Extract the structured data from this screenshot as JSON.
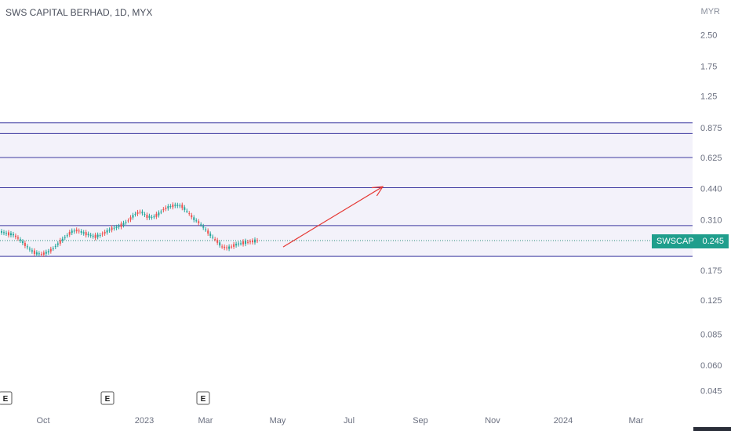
{
  "header": {
    "title": "SWS CAPITAL BERHAD, 1D, MYX",
    "currency": "MYR"
  },
  "price_tag": {
    "symbol": "SWSCAP",
    "value": "0.245"
  },
  "earnings_marker": "E",
  "chart_data": {
    "type": "candlestick",
    "y_scale": "log",
    "y_ticks": [
      "2.50",
      "1.75",
      "1.25",
      "0.875",
      "0.625",
      "0.440",
      "0.310",
      "0.175",
      "0.125",
      "0.085",
      "0.060",
      "0.045"
    ],
    "x_ticks": [
      "Oct",
      "2023",
      "Mar",
      "May",
      "Jul",
      "Sep",
      "Nov",
      "2024",
      "Mar"
    ],
    "horizontal_levels": [
      0.925,
      0.82,
      0.625,
      0.445,
      0.29,
      0.205
    ],
    "last_price": 0.245,
    "projection_arrow": {
      "from": {
        "date": "Apr 2023",
        "price": 0.228
      },
      "to": {
        "date": "Aug 2023",
        "price": 0.45
      }
    },
    "price_path": [
      0.27,
      0.265,
      0.262,
      0.25,
      0.235,
      0.22,
      0.212,
      0.21,
      0.215,
      0.225,
      0.24,
      0.255,
      0.27,
      0.275,
      0.268,
      0.262,
      0.256,
      0.26,
      0.27,
      0.28,
      0.285,
      0.295,
      0.31,
      0.33,
      0.34,
      0.322,
      0.318,
      0.33,
      0.35,
      0.36,
      0.365,
      0.362,
      0.34,
      0.315,
      0.3,
      0.28,
      0.26,
      0.245,
      0.228,
      0.225,
      0.232,
      0.237,
      0.24,
      0.242,
      0.245
    ]
  }
}
